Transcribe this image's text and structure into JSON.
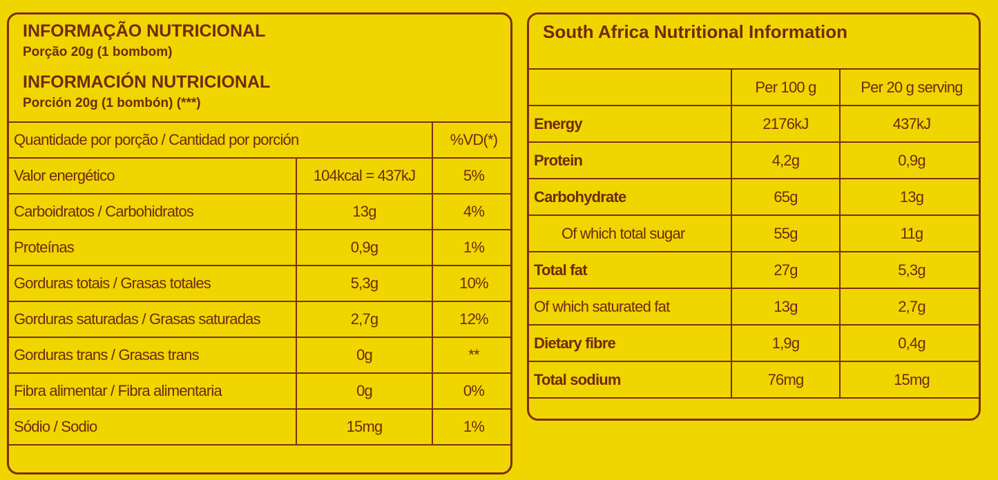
{
  "left": {
    "title": "INFORMAÇÃO NUTRICIONAL",
    "portion": "Porção 20g (1 bombom)",
    "title_es": "INFORMACIÓN NUTRICIONAL",
    "portion_es": "Porción 20g (1 bombón) (***)",
    "table": {
      "header": [
        "Quantidade por porção / Cantidad por porción",
        "%VD(*)"
      ],
      "rows": [
        [
          "Valor energético",
          "104kcal = 437kJ",
          "5%"
        ],
        [
          "Carboidratos / Carbohidratos",
          "13g",
          "4%"
        ],
        [
          "Proteínas",
          "0,9g",
          "1%"
        ],
        [
          "Gorduras totais / Grasas totales",
          "5,3g",
          "10%"
        ],
        [
          "Gorduras saturadas / Grasas saturadas",
          "2,7g",
          "12%"
        ],
        [
          "Gorduras trans / Grasas trans",
          "0g",
          "**"
        ],
        [
          "Fibra alimentar / Fibra alimentaria",
          "0g",
          "0%"
        ],
        [
          "Sódio / Sodio",
          "15mg",
          "1%"
        ]
      ]
    }
  },
  "right": {
    "title": "South Africa Nutritional Information",
    "table": {
      "header": [
        "Per 100 g",
        "Per 20 g serving"
      ],
      "rows": [
        [
          "Energy",
          "2176kJ",
          "437kJ"
        ],
        [
          "Protein",
          "4,2g",
          "0,9g"
        ],
        [
          "Carbohydrate",
          "65g",
          "13g"
        ],
        [
          "Of which total sugar",
          "55g",
          "11g"
        ],
        [
          "Total fat",
          "27g",
          "5,3g"
        ],
        [
          "Of which saturated fat",
          "13g",
          "2,7g"
        ],
        [
          "Dietary fibre",
          "1,9g",
          "0,4g"
        ],
        [
          "Total sodium",
          "76mg",
          "15mg"
        ]
      ]
    }
  }
}
